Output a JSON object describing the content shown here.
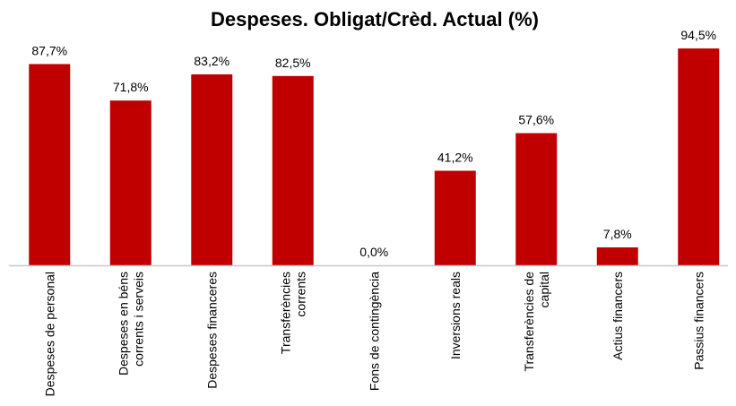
{
  "chart_data": {
    "type": "bar",
    "title": "Despeses. Obligat/Crèd. Actual (%)",
    "xlabel": "",
    "ylabel": "",
    "ylim": [
      0,
      100
    ],
    "grid": false,
    "legend": "none",
    "bar_color": "#c00000",
    "axis_color": "#c8c8c8",
    "categories": [
      [
        "Despeses de personal"
      ],
      [
        "Despeses en béns",
        "corrents i serveis"
      ],
      [
        "Despeses financeres"
      ],
      [
        "Transferències",
        "corrents"
      ],
      [
        "Fons de contingència"
      ],
      [
        "Inversions reals"
      ],
      [
        "Transferències de",
        "capital"
      ],
      [
        "Actius financers"
      ],
      [
        "Passius financers"
      ]
    ],
    "values": [
      87.7,
      71.8,
      83.2,
      82.5,
      0.0,
      41.2,
      57.6,
      7.8,
      94.5
    ],
    "data_labels": [
      "87,7%",
      "71,8%",
      "83,2%",
      "82,5%",
      "0,0%",
      "41,2%",
      "57,6%",
      "7,8%",
      "94,5%"
    ]
  }
}
